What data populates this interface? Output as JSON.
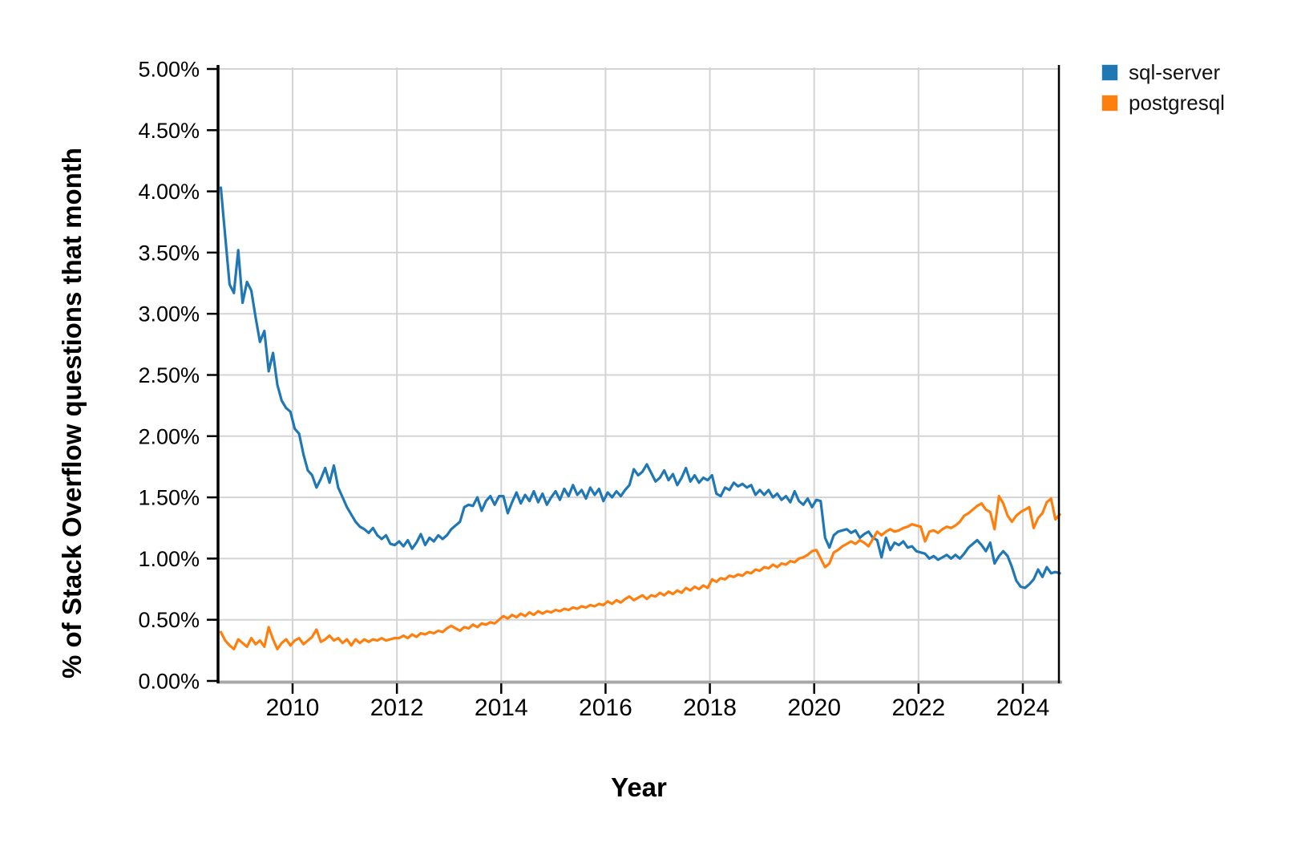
{
  "chart_data": {
    "type": "line",
    "title": "",
    "xlabel": "Year",
    "ylabel": "% of Stack Overflow questions that month",
    "x_start_month": "2008-08",
    "x_interval_months": 1,
    "xlim": [
      2008.58,
      2024.72
    ],
    "ylim": [
      0,
      5
    ],
    "grid": true,
    "legend_position": "top-right-outside",
    "xticks": [
      {
        "value": 2010,
        "label": "2010"
      },
      {
        "value": 2012,
        "label": "2012"
      },
      {
        "value": 2014,
        "label": "2014"
      },
      {
        "value": 2016,
        "label": "2016"
      },
      {
        "value": 2018,
        "label": "2018"
      },
      {
        "value": 2020,
        "label": "2020"
      },
      {
        "value": 2022,
        "label": "2022"
      },
      {
        "value": 2024,
        "label": "2024"
      }
    ],
    "yticks": [
      {
        "value": 0.0,
        "label": "0.00%"
      },
      {
        "value": 0.5,
        "label": "0.50%"
      },
      {
        "value": 1.0,
        "label": "1.00%"
      },
      {
        "value": 1.5,
        "label": "1.50%"
      },
      {
        "value": 2.0,
        "label": "2.00%"
      },
      {
        "value": 2.5,
        "label": "2.50%"
      },
      {
        "value": 3.0,
        "label": "3.00%"
      },
      {
        "value": 3.5,
        "label": "3.50%"
      },
      {
        "value": 4.0,
        "label": "4.00%"
      },
      {
        "value": 4.5,
        "label": "4.50%"
      },
      {
        "value": 5.0,
        "label": "5.00%"
      }
    ],
    "series": [
      {
        "name": "sql-server",
        "color": "#1f77b4",
        "values": [
          4.03,
          3.63,
          3.24,
          3.17,
          3.52,
          3.09,
          3.26,
          3.19,
          2.97,
          2.77,
          2.86,
          2.53,
          2.68,
          2.42,
          2.29,
          2.23,
          2.2,
          2.06,
          2.02,
          1.85,
          1.72,
          1.68,
          1.58,
          1.65,
          1.74,
          1.62,
          1.76,
          1.58,
          1.5,
          1.42,
          1.36,
          1.3,
          1.26,
          1.24,
          1.21,
          1.25,
          1.19,
          1.16,
          1.19,
          1.12,
          1.11,
          1.14,
          1.1,
          1.15,
          1.08,
          1.13,
          1.2,
          1.11,
          1.17,
          1.14,
          1.19,
          1.16,
          1.19,
          1.24,
          1.27,
          1.3,
          1.42,
          1.44,
          1.43,
          1.5,
          1.39,
          1.47,
          1.51,
          1.44,
          1.51,
          1.51,
          1.37,
          1.46,
          1.54,
          1.45,
          1.52,
          1.47,
          1.55,
          1.46,
          1.53,
          1.44,
          1.5,
          1.55,
          1.48,
          1.57,
          1.51,
          1.6,
          1.52,
          1.56,
          1.49,
          1.58,
          1.52,
          1.57,
          1.47,
          1.54,
          1.5,
          1.55,
          1.51,
          1.56,
          1.6,
          1.73,
          1.68,
          1.71,
          1.77,
          1.7,
          1.63,
          1.66,
          1.72,
          1.64,
          1.69,
          1.6,
          1.66,
          1.74,
          1.63,
          1.68,
          1.62,
          1.66,
          1.64,
          1.68,
          1.53,
          1.51,
          1.58,
          1.56,
          1.62,
          1.59,
          1.61,
          1.58,
          1.6,
          1.52,
          1.56,
          1.52,
          1.56,
          1.5,
          1.53,
          1.48,
          1.51,
          1.46,
          1.55,
          1.47,
          1.44,
          1.49,
          1.42,
          1.48,
          1.47,
          1.17,
          1.09,
          1.19,
          1.22,
          1.23,
          1.24,
          1.21,
          1.23,
          1.17,
          1.2,
          1.22,
          1.17,
          1.15,
          1.01,
          1.17,
          1.07,
          1.13,
          1.11,
          1.14,
          1.09,
          1.1,
          1.06,
          1.05,
          1.04,
          1.0,
          1.02,
          0.99,
          1.01,
          1.03,
          1.0,
          1.03,
          1.0,
          1.04,
          1.09,
          1.12,
          1.15,
          1.11,
          1.06,
          1.13,
          0.96,
          1.02,
          1.06,
          1.02,
          0.93,
          0.82,
          0.77,
          0.76,
          0.79,
          0.83,
          0.91,
          0.85,
          0.93,
          0.88,
          0.89,
          0.88
        ]
      },
      {
        "name": "postgresql",
        "color": "#ff7f0e",
        "values": [
          0.4,
          0.33,
          0.29,
          0.26,
          0.34,
          0.31,
          0.28,
          0.35,
          0.3,
          0.33,
          0.28,
          0.44,
          0.34,
          0.26,
          0.31,
          0.34,
          0.29,
          0.33,
          0.35,
          0.3,
          0.33,
          0.36,
          0.42,
          0.32,
          0.34,
          0.37,
          0.33,
          0.35,
          0.31,
          0.34,
          0.29,
          0.34,
          0.31,
          0.34,
          0.32,
          0.34,
          0.33,
          0.35,
          0.33,
          0.34,
          0.35,
          0.35,
          0.37,
          0.35,
          0.38,
          0.36,
          0.39,
          0.38,
          0.4,
          0.39,
          0.41,
          0.4,
          0.43,
          0.45,
          0.43,
          0.41,
          0.44,
          0.43,
          0.46,
          0.44,
          0.47,
          0.46,
          0.48,
          0.47,
          0.5,
          0.53,
          0.51,
          0.54,
          0.52,
          0.55,
          0.53,
          0.56,
          0.54,
          0.57,
          0.55,
          0.57,
          0.56,
          0.58,
          0.57,
          0.59,
          0.58,
          0.6,
          0.59,
          0.61,
          0.6,
          0.62,
          0.61,
          0.63,
          0.62,
          0.65,
          0.63,
          0.66,
          0.64,
          0.67,
          0.69,
          0.66,
          0.68,
          0.7,
          0.67,
          0.7,
          0.69,
          0.72,
          0.7,
          0.73,
          0.71,
          0.74,
          0.72,
          0.76,
          0.74,
          0.77,
          0.75,
          0.78,
          0.76,
          0.83,
          0.81,
          0.84,
          0.83,
          0.86,
          0.85,
          0.87,
          0.86,
          0.89,
          0.88,
          0.91,
          0.9,
          0.93,
          0.92,
          0.95,
          0.93,
          0.96,
          0.95,
          0.98,
          0.97,
          1.0,
          1.01,
          1.03,
          1.06,
          1.07,
          1.0,
          0.93,
          0.96,
          1.05,
          1.07,
          1.1,
          1.12,
          1.14,
          1.12,
          1.15,
          1.13,
          1.1,
          1.16,
          1.22,
          1.19,
          1.22,
          1.24,
          1.22,
          1.23,
          1.25,
          1.26,
          1.28,
          1.27,
          1.26,
          1.14,
          1.22,
          1.23,
          1.21,
          1.24,
          1.26,
          1.25,
          1.27,
          1.3,
          1.35,
          1.37,
          1.4,
          1.43,
          1.45,
          1.4,
          1.38,
          1.24,
          1.51,
          1.45,
          1.35,
          1.3,
          1.35,
          1.38,
          1.4,
          1.42,
          1.25,
          1.33,
          1.37,
          1.46,
          1.49,
          1.32,
          1.36
        ]
      }
    ],
    "style": {
      "background": "#ffffff",
      "gridline_color": "#d4d4d4",
      "axis_spine_color": "#000000",
      "bottom_axis_color": "#a8a8a8",
      "line_width": 3.2
    }
  }
}
